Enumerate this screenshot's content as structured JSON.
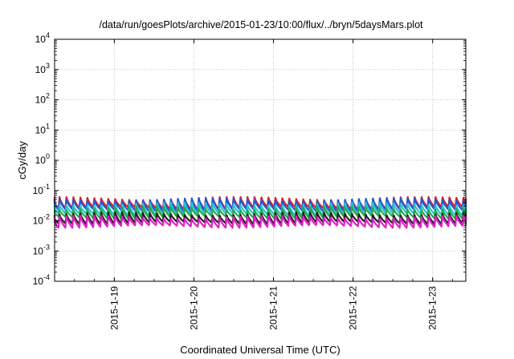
{
  "colors": {
    "red": "#e41a1c",
    "black": "#222222",
    "blue": "#1f5bd8",
    "cyan": "#27c4d0",
    "green": "#2aa84a",
    "magenta": "#e020c8"
  },
  "chart_data": {
    "type": "line",
    "title": "/data/run/goesPlots/archive/2015-01-23/10:00/flux/../bryn/5daysMars.plot",
    "xlabel": "Coordinated Universal Time (UTC)",
    "ylabel": "cGy/day",
    "y_scale": "log",
    "ylim": [
      0.0001,
      10000
    ],
    "xlim": [
      "2015-01-18 06:00",
      "2015-01-23 10:00"
    ],
    "grid": true,
    "y_ticks": [
      {
        "value": 0.0001,
        "base": "10",
        "exp": "-4"
      },
      {
        "value": 0.001,
        "base": "10",
        "exp": "-3"
      },
      {
        "value": 0.01,
        "base": "10",
        "exp": "-2"
      },
      {
        "value": 0.1,
        "base": "10",
        "exp": "-1"
      },
      {
        "value": 1,
        "base": "10",
        "exp": "0"
      },
      {
        "value": 10,
        "base": "10",
        "exp": "1"
      },
      {
        "value": 100,
        "base": "10",
        "exp": "2"
      },
      {
        "value": 1000,
        "base": "10",
        "exp": "3"
      },
      {
        "value": 10000,
        "base": "10",
        "exp": "4"
      }
    ],
    "x_ticks": [
      {
        "value": "2015-01-19 00:00",
        "label": "2015-1-19"
      },
      {
        "value": "2015-01-20 00:00",
        "label": "2015-1-20"
      },
      {
        "value": "2015-01-21 00:00",
        "label": "2015-1-21"
      },
      {
        "value": "2015-01-22 00:00",
        "label": "2015-1-22"
      },
      {
        "value": "2015-01-23 00:00",
        "label": "2015-1-23"
      }
    ],
    "series": [
      {
        "color": "#e41a1c",
        "peak": 0.055,
        "trough": 0.026
      },
      {
        "color": "#1f5bd8",
        "peak": 0.05,
        "trough": 0.022
      },
      {
        "color": "#27c4d0",
        "peak": 0.036,
        "trough": 0.016
      },
      {
        "color": "#2aa84a",
        "peak": 0.026,
        "trough": 0.013
      },
      {
        "color": "#222222",
        "peak": 0.017,
        "trough": 0.0085
      },
      {
        "color": "#e020c8",
        "peak": 0.013,
        "trough": 0.0065
      }
    ]
  }
}
